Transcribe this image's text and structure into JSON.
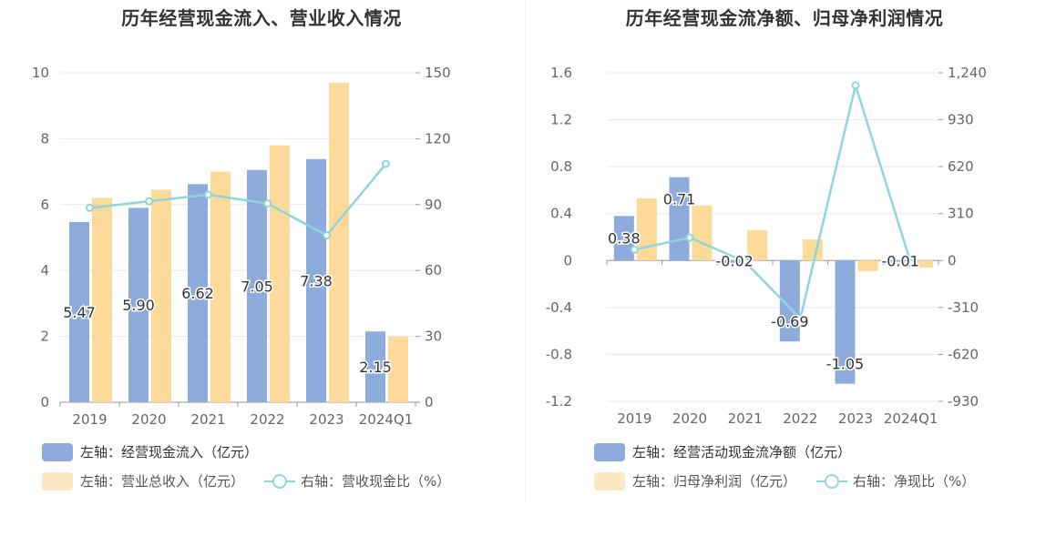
{
  "charts": [
    {
      "title": "历年经营现金流入、营业收入情况",
      "chart_data": {
        "type": "bar",
        "categories": [
          "2019",
          "2020",
          "2021",
          "2022",
          "2023",
          "2024Q1"
        ],
        "left_axis": {
          "ylim": [
            0,
            10
          ],
          "ticks": [
            "0",
            "2",
            "4",
            "6",
            "8",
            "10"
          ],
          "tick_values": [
            0,
            2,
            4,
            6,
            8,
            10
          ]
        },
        "right_axis": {
          "ylim": [
            0,
            150
          ],
          "ticks": [
            "0",
            "30",
            "60",
            "90",
            "120",
            "150"
          ],
          "tick_values": [
            0,
            30,
            60,
            90,
            120,
            150
          ]
        },
        "series": [
          {
            "name": "左轴：经营现金流入（亿元）",
            "kind": "bar",
            "axis": "left",
            "color": "#8eacdb",
            "values": [
              5.47,
              5.9,
              6.62,
              7.05,
              7.38,
              2.15
            ],
            "labels": [
              "5.47",
              "5.90",
              "6.62",
              "7.05",
              "7.38",
              "2.15"
            ]
          },
          {
            "name": "左轴：营业总收入（亿元）",
            "kind": "bar",
            "axis": "left",
            "color": "#fdd99a",
            "values": [
              6.2,
              6.45,
              7.0,
              7.8,
              9.7,
              2.0
            ]
          },
          {
            "name": "右轴：营收现金比（%）",
            "kind": "line",
            "axis": "right",
            "color": "#8fd6dc",
            "values": [
              88.5,
              91.5,
              94.5,
              90.5,
              76.0,
              108.5
            ]
          }
        ],
        "grid": true,
        "legend_position": "bottom-left"
      }
    },
    {
      "title": "历年经营现金流净额、归母净利润情况",
      "chart_data": {
        "type": "bar",
        "categories": [
          "2019",
          "2020",
          "2021",
          "2022",
          "2023",
          "2024Q1"
        ],
        "left_axis": {
          "ylim": [
            -1.2,
            1.6
          ],
          "ticks": [
            "-1.2",
            "-0.8",
            "-0.4",
            "0",
            "0.4",
            "0.8",
            "1.2",
            "1.6"
          ],
          "tick_values": [
            -1.2,
            -0.8,
            -0.4,
            0,
            0.4,
            0.8,
            1.2,
            1.6
          ]
        },
        "right_axis": {
          "ylim": [
            -930,
            1240
          ],
          "ticks": [
            "-930",
            "-620",
            "-310",
            "0",
            "310",
            "620",
            "930",
            "1,240"
          ],
          "tick_values": [
            -930,
            -620,
            -310,
            0,
            310,
            620,
            930,
            1240
          ]
        },
        "series": [
          {
            "name": "左轴：经营活动现金流净额（亿元）",
            "kind": "bar",
            "axis": "left",
            "color": "#8eacdb",
            "values": [
              0.38,
              0.71,
              -0.02,
              -0.69,
              -1.05,
              -0.01
            ],
            "labels": [
              "0.38",
              "0.71",
              "-0.02",
              "-0.69",
              "-1.05",
              "-0.01"
            ]
          },
          {
            "name": "左轴：归母净利润（亿元）",
            "kind": "bar",
            "axis": "left",
            "color": "#fdd99a",
            "values": [
              0.53,
              0.47,
              0.26,
              0.18,
              -0.09,
              -0.06
            ]
          },
          {
            "name": "右轴：净现比（%）",
            "kind": "line",
            "axis": "right",
            "color": "#8fd6dc",
            "values": [
              72,
              151,
              -8,
              -383,
              1157,
              -17
            ]
          }
        ],
        "grid": true,
        "legend_position": "bottom-left"
      }
    }
  ]
}
